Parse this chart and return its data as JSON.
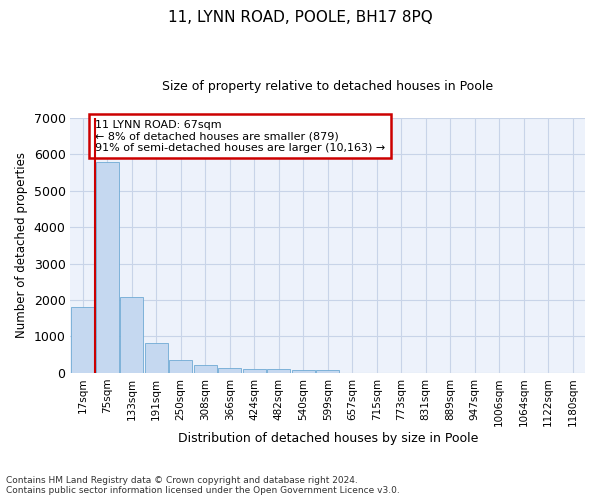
{
  "title": "11, LYNN ROAD, POOLE, BH17 8PQ",
  "subtitle": "Size of property relative to detached houses in Poole",
  "xlabel": "Distribution of detached houses by size in Poole",
  "ylabel": "Number of detached properties",
  "bar_color": "#c5d8f0",
  "bar_edge_color": "#6faad4",
  "grid_color": "#c8d4e8",
  "background_color": "#edf2fb",
  "categories": [
    "17sqm",
    "75sqm",
    "133sqm",
    "191sqm",
    "250sqm",
    "308sqm",
    "366sqm",
    "424sqm",
    "482sqm",
    "540sqm",
    "599sqm",
    "657sqm",
    "715sqm",
    "773sqm",
    "831sqm",
    "889sqm",
    "947sqm",
    "1006sqm",
    "1064sqm",
    "1122sqm",
    "1180sqm"
  ],
  "values": [
    1800,
    5800,
    2080,
    810,
    345,
    210,
    120,
    115,
    100,
    75,
    70,
    0,
    0,
    0,
    0,
    0,
    0,
    0,
    0,
    0,
    0
  ],
  "ylim": [
    0,
    7000
  ],
  "yticks": [
    0,
    1000,
    2000,
    3000,
    4000,
    5000,
    6000,
    7000
  ],
  "annotation_title": "11 LYNN ROAD: 67sqm",
  "annotation_line1": "← 8% of detached houses are smaller (879)",
  "annotation_line2": "91% of semi-detached houses are larger (10,163) →",
  "vline_color": "#cc0000",
  "annotation_box_color": "#ffffff",
  "annotation_box_edge": "#cc0000",
  "footer_line1": "Contains HM Land Registry data © Crown copyright and database right 2024.",
  "footer_line2": "Contains public sector information licensed under the Open Government Licence v3.0."
}
